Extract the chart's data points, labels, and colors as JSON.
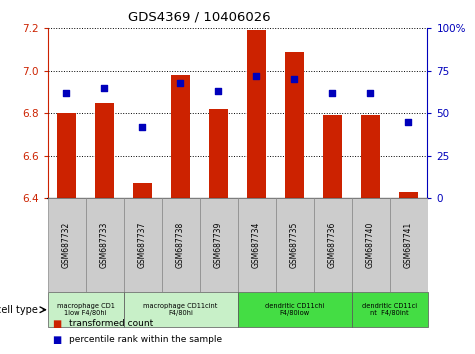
{
  "title": "GDS4369 / 10406026",
  "samples": [
    "GSM687732",
    "GSM687733",
    "GSM687737",
    "GSM687738",
    "GSM687739",
    "GSM687734",
    "GSM687735",
    "GSM687736",
    "GSM687740",
    "GSM687741"
  ],
  "transformed_count": [
    6.8,
    6.85,
    6.47,
    6.98,
    6.82,
    7.19,
    7.09,
    6.79,
    6.79,
    6.43
  ],
  "percentile_rank": [
    62,
    65,
    42,
    68,
    63,
    72,
    70,
    62,
    62,
    45
  ],
  "ylim_left": [
    6.4,
    7.2
  ],
  "ylim_right": [
    0,
    100
  ],
  "yticks_left": [
    6.4,
    6.6,
    6.8,
    7.0,
    7.2
  ],
  "yticks_right": [
    0,
    25,
    50,
    75,
    100
  ],
  "ytick_labels_right": [
    "0",
    "25",
    "50",
    "75",
    "100%"
  ],
  "bar_color": "#cc2200",
  "dot_color": "#0000bb",
  "grid_color": "#000000",
  "cell_types": [
    {
      "label": "macrophage CD1\n1low F4/80hi",
      "start": 0,
      "end": 2,
      "color": "#c8f0c8"
    },
    {
      "label": "macrophage CD11cint\nF4/80hi",
      "start": 2,
      "end": 5,
      "color": "#c8f0c8"
    },
    {
      "label": "dendritic CD11chi\nF4/80low",
      "start": 5,
      "end": 8,
      "color": "#44dd44"
    },
    {
      "label": "dendritic CD11ci\nnt  F4/80int",
      "start": 8,
      "end": 10,
      "color": "#44dd44"
    }
  ],
  "legend_bar_label": "transformed count",
  "legend_dot_label": "percentile rank within the sample",
  "cell_type_label": "cell type",
  "bar_color_legend": "#cc2200",
  "dot_color_legend": "#0000bb",
  "tick_bg_color": "#cccccc",
  "plot_bg_color": "#ffffff"
}
